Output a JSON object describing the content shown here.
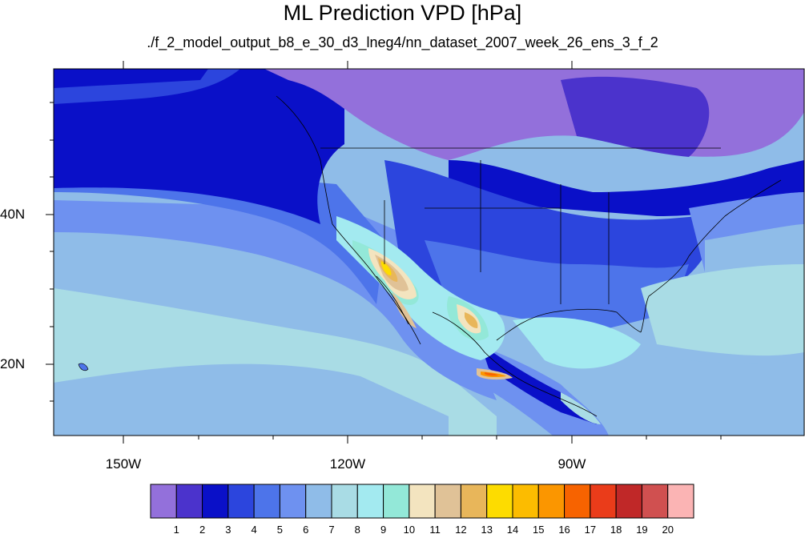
{
  "title": "ML Prediction VPD [hPa]",
  "subtitle": "./f_2_model_output_b8_e_30_d3_lneg4/nn_dataset_2007_week_26_ens_3_f_2",
  "lon_labels": [
    "150W",
    "120W",
    "90W"
  ],
  "lat_labels": [
    "40N",
    "20N"
  ],
  "colorbar": {
    "labels": [
      "1",
      "2",
      "3",
      "4",
      "5",
      "6",
      "7",
      "8",
      "9",
      "10",
      "11",
      "12",
      "13",
      "14",
      "15",
      "16",
      "17",
      "18",
      "19",
      "20"
    ],
    "colors": [
      "#9370db",
      "#4b33cc",
      "#0a10c8",
      "#2c45dd",
      "#4d74ea",
      "#6e91f0",
      "#8fbce8",
      "#a9dce5",
      "#a3eaf0",
      "#93e8d8",
      "#f3e4bf",
      "#e0c297",
      "#e8b65a",
      "#fddc00",
      "#fcbc00",
      "#fb9600",
      "#f76300",
      "#ea3c1a",
      "#c02828",
      "#d05050",
      "#fbb4b4"
    ]
  }
}
